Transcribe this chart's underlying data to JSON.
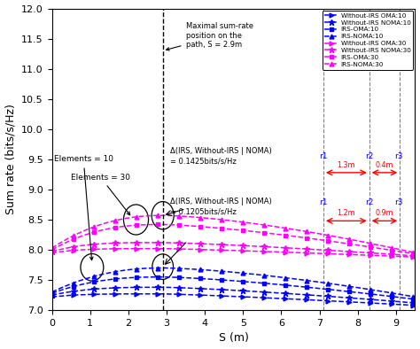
{
  "xlabel": "S (m)",
  "ylabel": "Sum rate (bits/s/Hz)",
  "xlim": [
    0,
    9.5
  ],
  "ylim": [
    7,
    12
  ],
  "peak_x": 2.9,
  "x_max": 9.5,
  "vlines": [
    2.9,
    7.1,
    8.3,
    9.1
  ],
  "blue_color": "#0000FF",
  "magenta_color": "#FF00FF",
  "red_color": "#FF0000",
  "legend_entries": [
    "Without-IRS OMA:10",
    "Without-IRS NOMA:10",
    "IRS-OMA:10",
    "IRS-NOMA:10",
    "Without-IRS OMA:30",
    "Without-IRS NOMA:30",
    "IRS-OMA:30",
    "IRS-NOMA:30"
  ],
  "ann_maximal": "Maximal sum-rate\nposition on the\npath, S = 2.9m",
  "ann_elem10": "Elements = 10",
  "ann_elem30": "Elements = 30",
  "ann_delta10": "Δ(IRS, Without-IRS | NOMA)\n= 0.1425bits/s/Hz",
  "ann_delta30": "Δ(IRS, Without-IRS | NOMA)\n= 0.1205bits/s/Hz",
  "xticks": [
    0,
    1,
    2,
    3,
    4,
    5,
    6,
    7,
    8,
    9
  ],
  "yticks": [
    7,
    7.5,
    8,
    8.5,
    9,
    9.5,
    10,
    10.5,
    11,
    11.5,
    12
  ]
}
